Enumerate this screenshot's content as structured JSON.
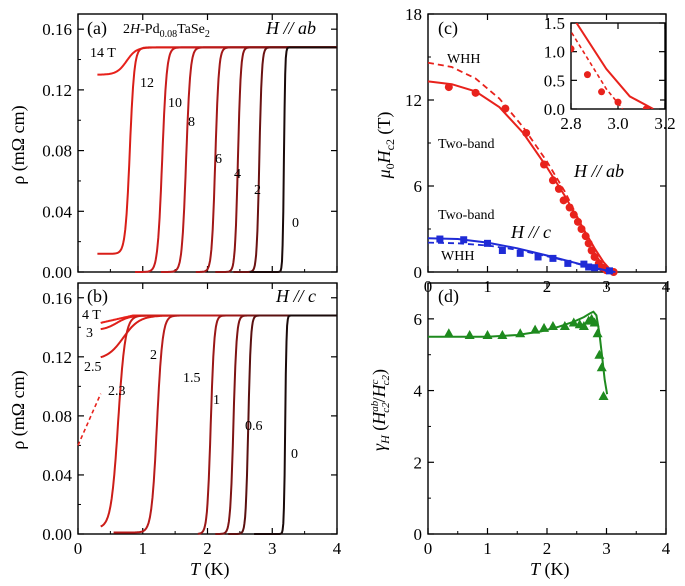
{
  "chart_data": [
    {
      "panel_id": "a",
      "type": "line",
      "panel_label": "(a)",
      "sample": "2H-Pd0.08TaSe2",
      "sample_parts": {
        "prefix": "2",
        "italic": "H",
        "mid": "-Pd",
        "sub": "0.08",
        "suffix": "TaSe",
        "sub2": "2"
      },
      "field_label": "H // ab",
      "xlabel": "T (K)",
      "ylabel": "ρ (mΩ cm)",
      "xlim": [
        0,
        4
      ],
      "ylim": [
        0,
        0.17
      ],
      "yticks": [
        0.0,
        0.04,
        0.08,
        0.12,
        0.16
      ],
      "ytick_labels": [
        "0.00",
        "0.04",
        "0.08",
        "0.12",
        "0.16"
      ],
      "series": [
        {
          "name": "14 T",
          "label": "14 T",
          "tc": 0.75,
          "width": 0.3,
          "low": 0.13,
          "ystart": 0.13,
          "x0": 0.3,
          "color": "#e8221c"
        },
        {
          "name": "12",
          "label": "12",
          "tc": 0.8,
          "width": 0.14,
          "low": 0.012,
          "ystart": 0.012,
          "x0": 0.3,
          "color": "#d91e18"
        },
        {
          "name": "10",
          "label": "10",
          "tc": 1.3,
          "width": 0.14,
          "low": 0.0,
          "ystart": 0.0,
          "x0": 0.88,
          "color": "#c91c1c"
        },
        {
          "name": "8",
          "label": "8",
          "tc": 1.67,
          "width": 0.13,
          "low": 0.0,
          "ystart": 0.0,
          "x0": 1.28,
          "color": "#b81b1b"
        },
        {
          "name": "6",
          "label": "6",
          "tc": 2.12,
          "width": 0.11,
          "low": 0.0,
          "ystart": 0.0,
          "x0": 1.82,
          "color": "#a11818"
        },
        {
          "name": "4",
          "label": "4",
          "tc": 2.47,
          "width": 0.09,
          "low": 0.0,
          "ystart": 0.0,
          "x0": 2.12,
          "color": "#8a1515"
        },
        {
          "name": "2",
          "label": "2",
          "tc": 2.8,
          "width": 0.08,
          "low": 0.0,
          "ystart": 0.0,
          "x0": 2.4,
          "color": "#6a1212"
        },
        {
          "name": "0",
          "label": "0",
          "tc": 3.18,
          "width": 0.04,
          "low": 0.0,
          "ystart": 0.0,
          "x0": 2.65,
          "color": "#1a0a0a"
        }
      ]
    },
    {
      "panel_id": "b",
      "type": "line",
      "panel_label": "(b)",
      "field_label": "H // c",
      "xlabel": "T (K)",
      "ylabel": "ρ (mΩ cm)",
      "xlim": [
        0,
        4
      ],
      "ylim": [
        0,
        0.17
      ],
      "xticks": [
        0,
        1,
        2,
        3,
        4
      ],
      "yticks": [
        0.0,
        0.04,
        0.08,
        0.12,
        0.16
      ],
      "ytick_labels": [
        "0.00",
        "0.04",
        "0.08",
        "0.12",
        "0.16"
      ],
      "extrapolation": {
        "x": [
          0.0,
          0.35
        ],
        "y": [
          0.06,
          0.095
        ],
        "style": "dashed",
        "color": "#e8221c"
      },
      "series": [
        {
          "name": "4 T",
          "label": "4 T",
          "tc": -1,
          "width": 0.3,
          "low": 0.145,
          "ystart": 0.143,
          "x0": 0.35,
          "color": "#e8221c"
        },
        {
          "name": "3",
          "label": "3",
          "tc": 0.6,
          "width": 0.4,
          "low": 0.138,
          "ystart": 0.138,
          "x0": 0.35,
          "color": "#e0201a"
        },
        {
          "name": "2.5",
          "label": "2.5",
          "tc": 0.7,
          "width": 0.5,
          "low": 0.118,
          "ystart": 0.118,
          "x0": 0.35,
          "color": "#d81e18"
        },
        {
          "name": "2.3",
          "label": "2.3",
          "tc": 0.62,
          "width": 0.22,
          "low": 0.004,
          "ystart": 0.004,
          "x0": 0.35,
          "color": "#cc1d18"
        },
        {
          "name": "2",
          "label": "2",
          "tc": 1.22,
          "width": 0.17,
          "low": 0.001,
          "ystart": 0.002,
          "x0": 0.55,
          "color": "#b81b1b"
        },
        {
          "name": "1.5",
          "label": "1.5",
          "tc": 2.05,
          "width": 0.11,
          "low": 0.0,
          "ystart": 0.0,
          "x0": 1.85,
          "color": "#9a1717"
        },
        {
          "name": "1",
          "label": "1",
          "tc": 2.4,
          "width": 0.1,
          "low": 0.0,
          "ystart": 0.0,
          "x0": 2.12,
          "color": "#7e1414"
        },
        {
          "name": "0.6",
          "label": "0.6",
          "tc": 2.63,
          "width": 0.08,
          "low": 0.0,
          "ystart": 0.0,
          "x0": 2.32,
          "color": "#5a1010"
        },
        {
          "name": "0",
          "label": "0",
          "tc": 3.2,
          "width": 0.04,
          "low": 0.0,
          "ystart": 0.0,
          "x0": 2.72,
          "color": "#1a0a0a"
        }
      ]
    },
    {
      "panel_id": "c",
      "type": "line+scatter",
      "panel_label": "(c)",
      "xlabel": "",
      "ylabel": "μ0Hc2 (T)",
      "xlim": [
        0,
        4
      ],
      "ylim": [
        0,
        18
      ],
      "yticks": [
        0,
        6,
        12,
        18
      ],
      "ab": {
        "label": "H // ab",
        "color": "#e8221c",
        "points": [
          {
            "x": 0.35,
            "y": 12.9
          },
          {
            "x": 0.8,
            "y": 12.5
          },
          {
            "x": 1.3,
            "y": 11.4
          },
          {
            "x": 1.65,
            "y": 9.7
          },
          {
            "x": 1.95,
            "y": 7.5
          },
          {
            "x": 2.1,
            "y": 6.4
          },
          {
            "x": 2.2,
            "y": 5.8
          },
          {
            "x": 2.28,
            "y": 5.0
          },
          {
            "x": 2.38,
            "y": 4.5
          },
          {
            "x": 2.45,
            "y": 4.0
          },
          {
            "x": 2.52,
            "y": 3.5
          },
          {
            "x": 2.58,
            "y": 3.0
          },
          {
            "x": 2.65,
            "y": 2.5
          },
          {
            "x": 2.7,
            "y": 2.0
          },
          {
            "x": 2.75,
            "y": 1.5
          },
          {
            "x": 2.8,
            "y": 1.05
          },
          {
            "x": 2.87,
            "y": 0.6
          },
          {
            "x": 2.93,
            "y": 0.3
          },
          {
            "x": 3.0,
            "y": 0.12
          },
          {
            "x": 3.12,
            "y": 0.0
          }
        ],
        "two_band_label": "Two-band",
        "two_band": {
          "x": [
            0.0,
            0.4,
            0.8,
            1.2,
            1.6,
            2.0,
            2.3,
            2.6,
            2.8,
            2.95,
            3.05,
            3.15
          ],
          "y": [
            13.3,
            13.1,
            12.6,
            11.5,
            9.7,
            7.3,
            5.3,
            3.1,
            1.65,
            0.7,
            0.22,
            0.0
          ]
        },
        "whh_label": "WHH",
        "whh": {
          "x": [
            0.0,
            0.4,
            0.8,
            1.2,
            1.6,
            2.0,
            2.3,
            2.6,
            2.8,
            2.95,
            3.02
          ],
          "y": [
            14.6,
            14.3,
            13.5,
            12.1,
            10.1,
            7.7,
            5.6,
            3.1,
            1.35,
            0.35,
            0.0
          ]
        }
      },
      "c": {
        "label": "H // c",
        "color": "#1f2bd6",
        "points": [
          {
            "x": 0.2,
            "y": 2.3
          },
          {
            "x": 0.6,
            "y": 2.25
          },
          {
            "x": 1.0,
            "y": 2.0
          },
          {
            "x": 1.25,
            "y": 1.5
          },
          {
            "x": 1.55,
            "y": 1.3
          },
          {
            "x": 1.85,
            "y": 1.05
          },
          {
            "x": 2.1,
            "y": 0.95
          },
          {
            "x": 2.35,
            "y": 0.6
          },
          {
            "x": 2.62,
            "y": 0.55
          },
          {
            "x": 2.7,
            "y": 0.35
          },
          {
            "x": 2.8,
            "y": 0.3
          },
          {
            "x": 3.05,
            "y": 0.08
          }
        ],
        "two_band_label": "Two-band",
        "two_band": {
          "x": [
            0.0,
            0.5,
            1.0,
            1.5,
            2.0,
            2.4,
            2.7,
            2.9,
            3.05,
            3.15
          ],
          "y": [
            2.35,
            2.3,
            2.05,
            1.65,
            1.15,
            0.72,
            0.4,
            0.2,
            0.06,
            0.0
          ]
        },
        "whh_label": "WHH",
        "whh": {
          "x": [
            0.0,
            0.5,
            1.0,
            1.5,
            2.0,
            2.4,
            2.7,
            2.9,
            3.05
          ],
          "y": [
            2.05,
            2.0,
            1.85,
            1.55,
            1.1,
            0.7,
            0.38,
            0.16,
            0.0
          ]
        }
      },
      "inset": {
        "xlim": [
          2.8,
          3.2
        ],
        "ylim": [
          0,
          1.5
        ],
        "xticks": [
          2.8,
          3.0,
          3.2
        ],
        "xtick_labels": [
          "2.8",
          "3.0",
          "3.2"
        ],
        "yticks": [
          0.0,
          0.5,
          1.0,
          1.5
        ],
        "ytick_labels": [
          "0.0",
          "0.5",
          "1.0",
          "1.5"
        ]
      }
    },
    {
      "panel_id": "d",
      "type": "line+scatter",
      "panel_label": "(d)",
      "xlabel": "T (K)",
      "ylabel": "γH (Hab c2 / Hc c2)",
      "xlim": [
        0,
        4
      ],
      "ylim": [
        0,
        7
      ],
      "xticks": [
        0,
        1,
        2,
        3,
        4
      ],
      "yticks": [
        0,
        2,
        4,
        6
      ],
      "color": "#1e8a1e",
      "points": [
        {
          "x": 0.35,
          "y": 5.6
        },
        {
          "x": 0.7,
          "y": 5.55
        },
        {
          "x": 1.0,
          "y": 5.55
        },
        {
          "x": 1.25,
          "y": 5.55
        },
        {
          "x": 1.55,
          "y": 5.6
        },
        {
          "x": 1.8,
          "y": 5.7
        },
        {
          "x": 1.95,
          "y": 5.75
        },
        {
          "x": 2.1,
          "y": 5.8
        },
        {
          "x": 2.3,
          "y": 5.8
        },
        {
          "x": 2.45,
          "y": 5.9
        },
        {
          "x": 2.55,
          "y": 5.85
        },
        {
          "x": 2.62,
          "y": 5.8
        },
        {
          "x": 2.7,
          "y": 5.95
        },
        {
          "x": 2.75,
          "y": 6.0
        },
        {
          "x": 2.8,
          "y": 5.9
        },
        {
          "x": 2.85,
          "y": 5.6
        },
        {
          "x": 2.88,
          "y": 5.0
        },
        {
          "x": 2.92,
          "y": 4.65
        },
        {
          "x": 2.95,
          "y": 3.85
        }
      ],
      "fit": {
        "x": [
          0.0,
          0.5,
          1.0,
          1.5,
          1.9,
          2.2,
          2.45,
          2.62,
          2.72,
          2.78,
          2.83,
          2.88,
          2.93,
          2.97,
          3.01
        ],
        "y": [
          5.5,
          5.5,
          5.5,
          5.55,
          5.65,
          5.78,
          5.92,
          6.05,
          6.15,
          6.2,
          6.1,
          5.6,
          4.9,
          4.3,
          3.9
        ]
      }
    }
  ],
  "axis_labels": {
    "x_bottom": "T (K)",
    "rho": "ρ (mΩ cm)",
    "hc2_main": "μ",
    "hc2_sub0": "0",
    "hc2_H": "H",
    "hc2_sub": "c2",
    "hc2_unit": " (T)",
    "gamma_main": "γ",
    "gamma_sub": "H",
    "gamma_open": " (",
    "gamma_H1": "H",
    "gamma_sup1": "ab",
    "gamma_sub1": "c2",
    "gamma_slash": "/",
    "gamma_H2": "H",
    "gamma_sup2": "c",
    "gamma_sub2": "c2",
    "gamma_close": ")"
  }
}
